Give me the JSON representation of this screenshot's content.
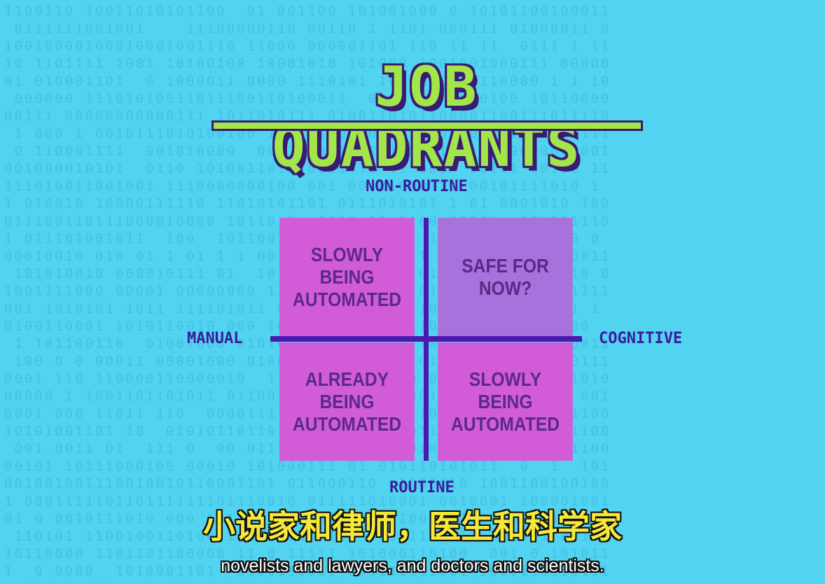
{
  "title": "JOB QUADRANTS",
  "axes": {
    "top": "NON-ROUTINE",
    "bottom": "ROUTINE",
    "left": "MANUAL",
    "right": "COGNITIVE"
  },
  "quadrants": {
    "top_left": [
      "SLOWLY",
      "BEING",
      "AUTOMATED"
    ],
    "top_right": [
      "SAFE FOR",
      "NOW?"
    ],
    "bottom_left": [
      "ALREADY",
      "BEING",
      "AUTOMATED"
    ],
    "bottom_right": [
      "SLOWLY",
      "BEING",
      "AUTOMATED"
    ]
  },
  "subtitles": {
    "chinese": "小说家和律师，医生和科学家",
    "english": "novelists and lawyers, and doctors and scientists."
  },
  "colors": {
    "background": "#52d3f0",
    "title_fill": "#a2e64a",
    "title_outline": "#3a1b74",
    "quadrant_pink": "#d25cd8",
    "quadrant_purple": "#a772dc",
    "divider": "#4a1ab0",
    "axis_label": "#3a1c9e",
    "subtitle_zh": "#f5e83a",
    "subtitle_en": "#ffffff"
  }
}
